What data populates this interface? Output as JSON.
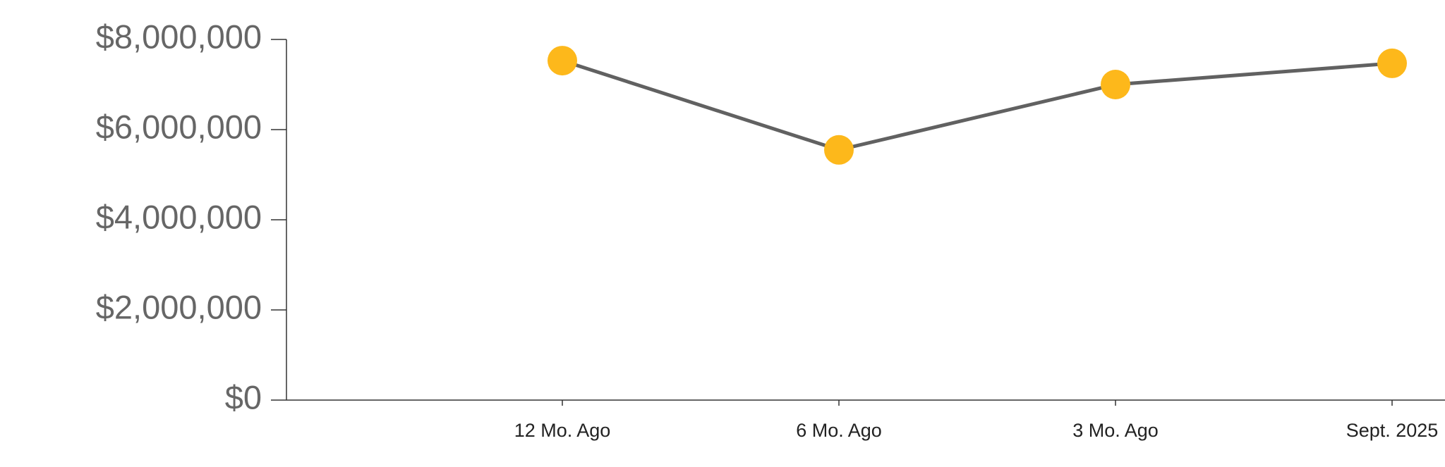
{
  "chart_data": {
    "type": "line",
    "categories": [
      "12 Mo. Ago",
      "6 Mo. Ago",
      "3 Mo. Ago",
      "Sept. 2025"
    ],
    "series": [
      {
        "values": [
          7530000,
          5550000,
          7000000,
          7470000
        ],
        "color": "#616161",
        "marker_color": "#fdb81b"
      }
    ],
    "ylim": [
      0,
      8000000
    ],
    "yticks": [
      {
        "value": 0,
        "label": "$0"
      },
      {
        "value": 2000000,
        "label": "$2,000,000"
      },
      {
        "value": 4000000,
        "label": "$4,000,000"
      },
      {
        "value": 6000000,
        "label": "$6,000,000"
      },
      {
        "value": 8000000,
        "label": "$8,000,000"
      }
    ],
    "grid": false
  }
}
